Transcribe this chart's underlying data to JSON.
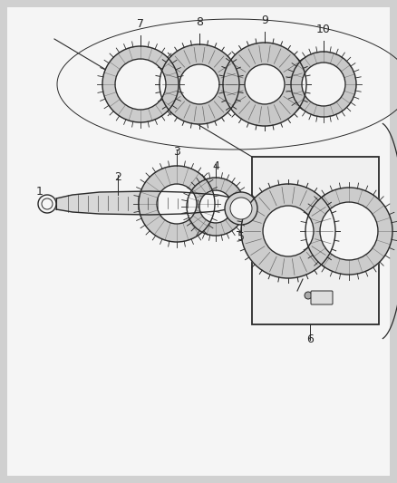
{
  "bg_color": "#d0d0d0",
  "content_bg": "#f0f0f0",
  "line_color": "#2a2a2a",
  "fill_light": "#e8e8e8",
  "fill_medium": "#c8c8c8",
  "fill_dark": "#a0a0a0",
  "figure_width": 4.38,
  "figure_height": 5.33,
  "label_1": "1",
  "label_2": "2",
  "label_3": "3",
  "label_4": "4",
  "label_5": "5",
  "label_6": "6",
  "label_7": "7",
  "label_8": "8",
  "label_9": "9",
  "label_10": "10"
}
